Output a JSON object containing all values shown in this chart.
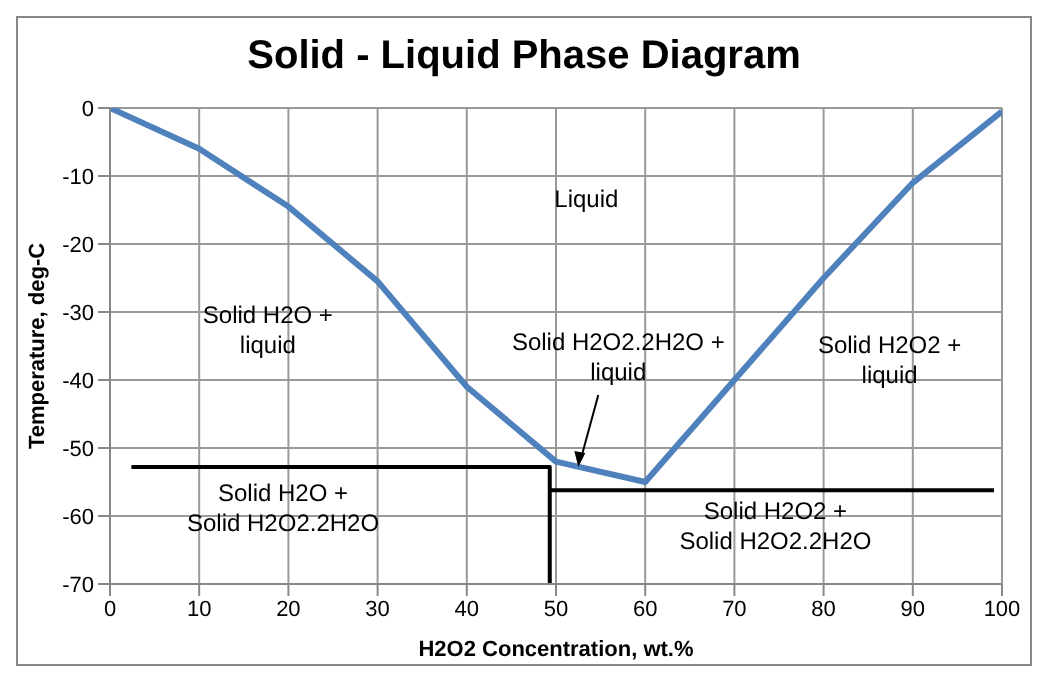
{
  "chart_data": {
    "type": "line",
    "title": "Solid - Liquid Phase Diagram",
    "xlabel": "H2O2 Concentration, wt.%",
    "ylabel": "Temperature, deg-C",
    "xlim": [
      0,
      100
    ],
    "xticks": [
      0,
      10,
      20,
      30,
      40,
      50,
      60,
      70,
      80,
      90,
      100
    ],
    "ylim": [
      -70,
      0
    ],
    "yticks": [
      -70,
      -60,
      -50,
      -40,
      -30,
      -20,
      -10,
      0
    ],
    "grid": true,
    "marker": "none",
    "line_style": "solid",
    "series": [
      {
        "color": "#4f81bd",
        "x": [
          0,
          10,
          20,
          30,
          40,
          50,
          60,
          70,
          80,
          90,
          100
        ],
        "values": [
          0,
          -6,
          -14.5,
          -25.5,
          -41,
          -52,
          -55,
          -40,
          -25,
          -11,
          -0.5
        ]
      },
      {
        "color": "#000000",
        "x": [
          2.4,
          49.3,
          49.3
        ],
        "values": [
          -52.8,
          -52.8,
          -70
        ]
      },
      {
        "color": "#000000",
        "x": [
          49.3,
          99.1
        ],
        "values": [
          -56.2,
          -56.2
        ]
      }
    ],
    "annotations": [
      "Liquid",
      "Solid H2O +\nliquid",
      {
        "text": "Solid H2O2.2H2O  +\nliquid",
        "x": 52.5,
        "y": -52.8
      },
      "Solid H2O2  +\nliquid",
      "Solid H2O +\nSolid H2O2.2H2O",
      "Solid H2O2 +\nSolid H2O2.2H2O"
    ]
  }
}
